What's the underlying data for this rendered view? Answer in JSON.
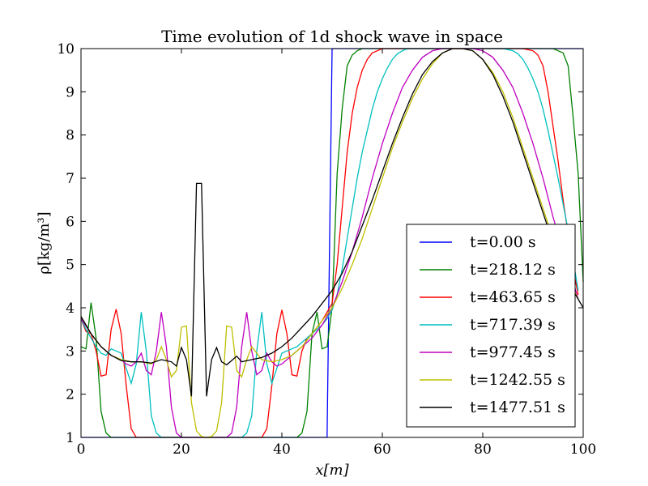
{
  "chart_data": {
    "type": "line",
    "title": "Time evolution of 1d shock wave in space",
    "xlabel": "x[m]",
    "ylabel": "ρ[kg/m³]",
    "xlim": [
      0,
      100
    ],
    "ylim": [
      1,
      10
    ],
    "xticks": [
      0,
      20,
      40,
      60,
      80,
      100
    ],
    "xtick_labels": [
      "0",
      "20",
      "40",
      "60",
      "80",
      "100"
    ],
    "yticks": [
      1,
      2,
      3,
      4,
      5,
      6,
      7,
      8,
      9,
      10
    ],
    "ytick_labels": [
      "1",
      "2",
      "3",
      "4",
      "5",
      "6",
      "7",
      "8",
      "9",
      "10"
    ],
    "grid": false,
    "legend_position": "lower-right",
    "series": [
      {
        "name": "t=0.00 s",
        "color": "#0000ff",
        "x": [
          0,
          49,
          50,
          51,
          100
        ],
        "y": [
          1,
          1,
          10,
          10,
          10
        ]
      },
      {
        "name": "t=218.12 s",
        "color": "#008000",
        "x": [
          0,
          1,
          2,
          3,
          4,
          5,
          6,
          8,
          10,
          15,
          20,
          25,
          30,
          35,
          40,
          42,
          43,
          44,
          45,
          46,
          47,
          48,
          49,
          50,
          51,
          52,
          53,
          54,
          55,
          56,
          58,
          60,
          70,
          80,
          90,
          94,
          96,
          97,
          98,
          99,
          100
        ],
        "y": [
          3.1,
          3.05,
          4.12,
          3.3,
          1.6,
          1.1,
          1.0,
          1.0,
          1.0,
          1.0,
          1.0,
          1.0,
          1.0,
          1.0,
          1.0,
          1.0,
          1.0,
          1.1,
          1.6,
          3.4,
          3.9,
          3.05,
          3.1,
          4.0,
          7.1,
          8.6,
          9.6,
          9.85,
          9.95,
          10.0,
          10.0,
          10.0,
          10.0,
          10.0,
          10.0,
          10.0,
          9.9,
          9.6,
          8.4,
          7.1,
          4.6
        ]
      },
      {
        "name": "t=463.65 s",
        "color": "#ff0000",
        "x": [
          0,
          1,
          2,
          3,
          4,
          5,
          6,
          7,
          8,
          9,
          10,
          11,
          12,
          15,
          20,
          25,
          30,
          35,
          36,
          37,
          38,
          39,
          40,
          41,
          42,
          43,
          44,
          45,
          46,
          47,
          48,
          49,
          50,
          51,
          52,
          53,
          54,
          55,
          56,
          57,
          58,
          59,
          60,
          62,
          64,
          70,
          80,
          88,
          90,
          91,
          92,
          93,
          94,
          95,
          96,
          97,
          98,
          99
        ],
        "y": [
          3.75,
          3.45,
          3.4,
          3.0,
          2.42,
          2.45,
          3.5,
          3.97,
          3.4,
          2.2,
          1.2,
          1.0,
          1.0,
          1.0,
          1.0,
          1.0,
          1.0,
          1.0,
          1.0,
          1.2,
          2.2,
          3.4,
          3.95,
          3.4,
          2.45,
          2.42,
          3.0,
          3.3,
          3.4,
          3.55,
          3.7,
          3.9,
          4.1,
          5.0,
          6.3,
          7.6,
          8.5,
          9.1,
          9.5,
          9.75,
          9.9,
          9.95,
          10.0,
          10.0,
          10.0,
          10.0,
          10.0,
          10.0,
          9.95,
          9.85,
          9.6,
          9.0,
          8.2,
          7.4,
          6.5,
          5.7,
          4.9,
          4.3
        ]
      },
      {
        "name": "t=717.39 s",
        "color": "#00bfbf",
        "x": [
          0,
          1,
          2,
          3,
          4,
          5,
          6,
          7,
          8,
          9,
          10,
          11,
          12,
          13,
          14,
          15,
          16,
          18,
          20,
          25,
          30,
          32,
          33,
          34,
          35,
          36,
          37,
          38,
          39,
          40,
          41,
          42,
          43,
          44,
          45,
          46,
          47,
          48,
          49,
          50,
          51,
          52,
          53,
          54,
          55,
          56,
          57,
          58,
          59,
          60,
          61,
          62,
          63,
          64,
          65,
          66,
          68,
          70,
          80,
          84,
          86,
          87,
          88,
          89,
          90,
          91,
          92,
          93,
          94,
          95,
          96,
          97,
          98,
          99
        ],
        "y": [
          3.75,
          3.5,
          3.3,
          3.1,
          2.95,
          2.9,
          3.05,
          3.0,
          2.95,
          2.6,
          2.25,
          2.7,
          3.9,
          3.0,
          1.5,
          1.1,
          1.0,
          1.0,
          1.0,
          1.0,
          1.0,
          1.0,
          1.1,
          1.5,
          3.0,
          3.9,
          2.7,
          2.25,
          2.6,
          2.95,
          3.0,
          3.05,
          3.1,
          3.2,
          3.3,
          3.4,
          3.5,
          3.6,
          3.75,
          3.95,
          4.3,
          4.9,
          5.6,
          6.3,
          7.0,
          7.6,
          8.1,
          8.6,
          9.0,
          9.3,
          9.55,
          9.75,
          9.88,
          9.95,
          10.0,
          10.0,
          10.0,
          10.0,
          10.0,
          10.0,
          9.95,
          9.88,
          9.75,
          9.55,
          9.3,
          9.0,
          8.6,
          8.1,
          7.55,
          7.0,
          6.4,
          5.8,
          5.1,
          4.4
        ]
      },
      {
        "name": "t=977.45 s",
        "color": "#bf00bf",
        "x": [
          0,
          2,
          4,
          6,
          8,
          9,
          10,
          11,
          12,
          13,
          14,
          15,
          16,
          17,
          18,
          19,
          20,
          21,
          22,
          25,
          28,
          29,
          30,
          31,
          32,
          33,
          34,
          35,
          36,
          37,
          38,
          39,
          40,
          41,
          42,
          44,
          46,
          48,
          50,
          52,
          54,
          56,
          58,
          60,
          62,
          64,
          66,
          68,
          70,
          72,
          74,
          76,
          78,
          80,
          82,
          84,
          86,
          88,
          90,
          92,
          94,
          96,
          98,
          99
        ],
        "y": [
          3.75,
          3.4,
          3.1,
          2.9,
          2.8,
          2.7,
          2.65,
          2.75,
          2.95,
          2.55,
          2.45,
          3.0,
          3.9,
          3.1,
          1.7,
          1.1,
          1.0,
          1.0,
          1.0,
          1.0,
          1.0,
          1.0,
          1.1,
          1.7,
          3.1,
          3.9,
          3.0,
          2.45,
          2.55,
          2.95,
          2.75,
          2.65,
          2.7,
          2.8,
          2.9,
          3.1,
          3.3,
          3.6,
          4.0,
          4.6,
          5.3,
          6.1,
          7.0,
          7.8,
          8.5,
          9.1,
          9.5,
          9.8,
          9.95,
          10.0,
          10.0,
          10.0,
          10.0,
          9.95,
          9.8,
          9.5,
          9.1,
          8.5,
          7.8,
          7.0,
          6.1,
          5.3,
          4.6,
          4.2
        ]
      },
      {
        "name": "t=1242.55 s",
        "color": "#bfbf00",
        "x": [
          0,
          2,
          4,
          6,
          8,
          10,
          12,
          14,
          15,
          16,
          17,
          18,
          19,
          20,
          21,
          22,
          23,
          24,
          25,
          26,
          27,
          28,
          29,
          30,
          31,
          32,
          33,
          34,
          36,
          38,
          40,
          42,
          44,
          46,
          48,
          50,
          52,
          54,
          56,
          58,
          60,
          62,
          64,
          66,
          68,
          70,
          72,
          74,
          76,
          78,
          80,
          82,
          84,
          86,
          88,
          90,
          92,
          94,
          96,
          98,
          99
        ],
        "y": [
          3.8,
          3.4,
          3.1,
          2.9,
          2.8,
          2.75,
          2.75,
          2.7,
          2.8,
          3.1,
          2.8,
          2.4,
          2.55,
          3.55,
          3.58,
          1.8,
          1.15,
          1.02,
          1.0,
          1.02,
          1.15,
          1.8,
          3.58,
          3.55,
          2.55,
          2.4,
          2.8,
          3.1,
          2.8,
          2.75,
          2.8,
          2.9,
          3.1,
          3.4,
          3.7,
          4.0,
          4.45,
          5.0,
          5.6,
          6.3,
          7.0,
          7.7,
          8.3,
          8.85,
          9.3,
          9.65,
          9.9,
          10.0,
          10.0,
          9.95,
          9.75,
          9.45,
          9.0,
          8.4,
          7.7,
          7.0,
          6.3,
          5.6,
          5.0,
          4.45,
          4.2
        ]
      },
      {
        "name": "t=1477.51 s",
        "color": "#000000",
        "x": [
          0,
          2,
          4,
          6,
          8,
          10,
          12,
          14,
          16,
          18,
          19,
          20,
          21,
          22,
          23,
          24,
          25,
          26,
          27,
          28,
          29,
          30,
          31,
          32,
          34,
          36,
          38,
          40,
          42,
          44,
          46,
          48,
          50,
          52,
          54,
          56,
          58,
          60,
          62,
          64,
          66,
          68,
          70,
          72,
          74,
          76,
          78,
          80,
          82,
          84,
          86,
          88,
          90,
          92,
          94,
          96,
          98,
          100
        ],
        "y": [
          3.8,
          3.4,
          3.1,
          2.9,
          2.78,
          2.75,
          2.75,
          2.72,
          2.8,
          2.75,
          2.65,
          3.08,
          2.8,
          1.95,
          6.88,
          6.88,
          1.95,
          2.8,
          3.08,
          2.75,
          2.68,
          2.78,
          2.88,
          2.75,
          2.8,
          2.85,
          2.95,
          3.1,
          3.3,
          3.55,
          3.8,
          4.1,
          4.4,
          4.8,
          5.3,
          5.9,
          6.5,
          7.15,
          7.8,
          8.4,
          8.95,
          9.4,
          9.7,
          9.9,
          10.0,
          10.0,
          9.95,
          9.75,
          9.4,
          8.9,
          8.3,
          7.6,
          6.9,
          6.2,
          5.5,
          4.9,
          4.4,
          4.0
        ]
      }
    ]
  }
}
